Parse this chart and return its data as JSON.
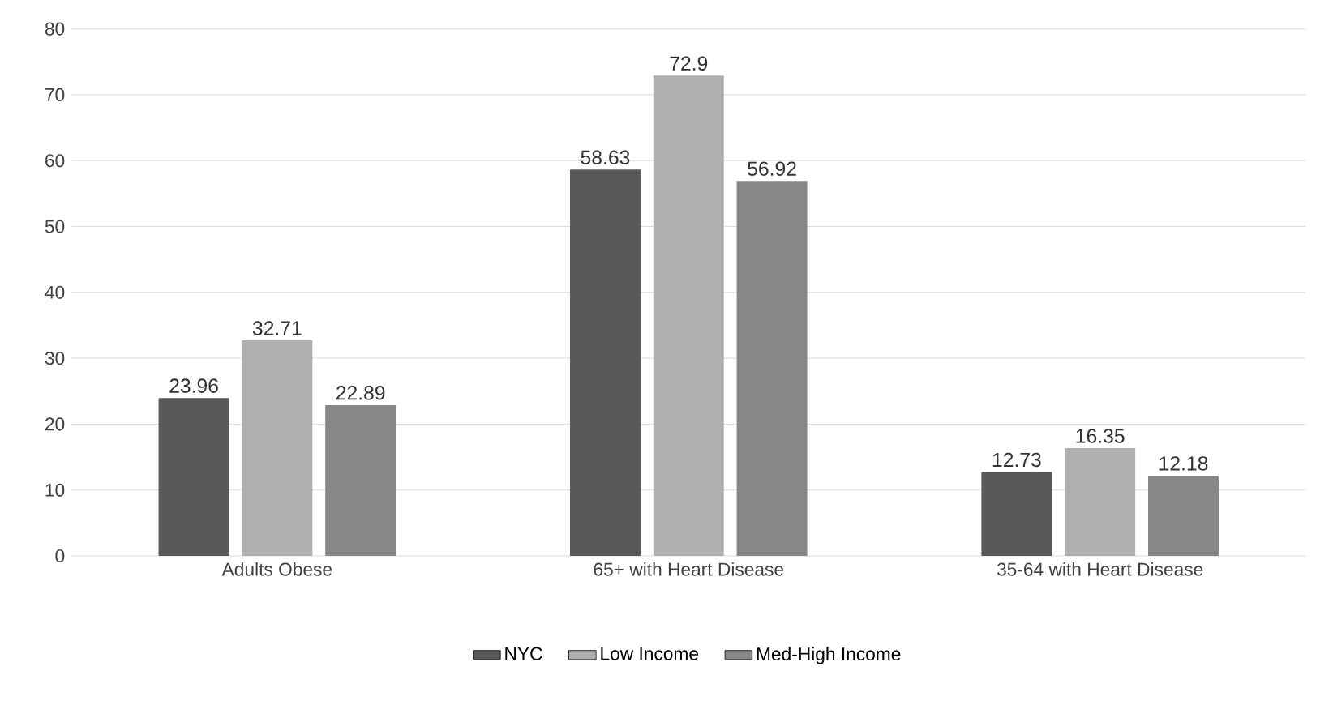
{
  "chart_data": {
    "type": "bar",
    "categories": [
      "Adults Obese",
      "65+ with Heart Disease",
      "35-64 with Heart Disease"
    ],
    "series": [
      {
        "name": "NYC",
        "color": "#595959",
        "values": [
          23.96,
          58.63,
          12.73
        ]
      },
      {
        "name": "Low Income",
        "color": "#afafaf",
        "values": [
          32.71,
          72.9,
          16.35
        ]
      },
      {
        "name": "Med-High Income",
        "color": "#878787",
        "values": [
          22.89,
          56.92,
          12.18
        ]
      }
    ],
    "ylim": [
      0,
      80
    ],
    "yticks": [
      0,
      10,
      20,
      30,
      40,
      50,
      60,
      70,
      80
    ],
    "grid": "y",
    "legend": "bottom",
    "data_labels": true
  }
}
